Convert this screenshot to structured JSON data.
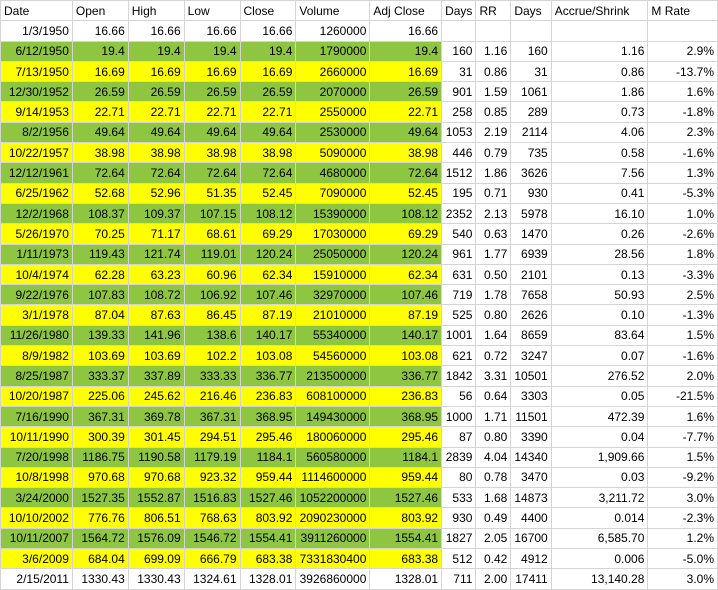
{
  "headers": [
    "Date",
    "Open",
    "High",
    "Low",
    "Close",
    "Volume",
    "Adj Close",
    "Days",
    "RR",
    "Days",
    "Accrue/Shrink",
    "M Rate"
  ],
  "rows": [
    {
      "style": "white",
      "cells": [
        "1/3/1950",
        "16.66",
        "16.66",
        "16.66",
        "16.66",
        "1260000",
        "16.66",
        "",
        "",
        "",
        "",
        ""
      ]
    },
    {
      "style": "green",
      "cells": [
        "6/12/1950",
        "19.4",
        "19.4",
        "19.4",
        "19.4",
        "1790000",
        "19.4",
        "160",
        "1.16",
        "160",
        "1.16",
        "2.9%"
      ]
    },
    {
      "style": "yellow",
      "cells": [
        "7/13/1950",
        "16.69",
        "16.69",
        "16.69",
        "16.69",
        "2660000",
        "16.69",
        "31",
        "0.86",
        "31",
        "0.86",
        "-13.7%"
      ]
    },
    {
      "style": "green",
      "cells": [
        "12/30/1952",
        "26.59",
        "26.59",
        "26.59",
        "26.59",
        "2070000",
        "26.59",
        "901",
        "1.59",
        "1061",
        "1.86",
        "1.6%"
      ]
    },
    {
      "style": "yellow",
      "cells": [
        "9/14/1953",
        "22.71",
        "22.71",
        "22.71",
        "22.71",
        "2550000",
        "22.71",
        "258",
        "0.85",
        "289",
        "0.73",
        "-1.8%"
      ]
    },
    {
      "style": "green",
      "cells": [
        "8/2/1956",
        "49.64",
        "49.64",
        "49.64",
        "49.64",
        "2530000",
        "49.64",
        "1053",
        "2.19",
        "2114",
        "4.06",
        "2.3%"
      ]
    },
    {
      "style": "yellow",
      "cells": [
        "10/22/1957",
        "38.98",
        "38.98",
        "38.98",
        "38.98",
        "5090000",
        "38.98",
        "446",
        "0.79",
        "735",
        "0.58",
        "-1.6%"
      ]
    },
    {
      "style": "green",
      "cells": [
        "12/12/1961",
        "72.64",
        "72.64",
        "72.64",
        "72.64",
        "4680000",
        "72.64",
        "1512",
        "1.86",
        "3626",
        "7.56",
        "1.3%"
      ]
    },
    {
      "style": "yellow",
      "cells": [
        "6/25/1962",
        "52.68",
        "52.96",
        "51.35",
        "52.45",
        "7090000",
        "52.45",
        "195",
        "0.71",
        "930",
        "0.41",
        "-5.3%"
      ]
    },
    {
      "style": "green",
      "cells": [
        "12/2/1968",
        "108.37",
        "109.37",
        "107.15",
        "108.12",
        "15390000",
        "108.12",
        "2352",
        "2.13",
        "5978",
        "16.10",
        "1.0%"
      ]
    },
    {
      "style": "yellow",
      "cells": [
        "5/26/1970",
        "70.25",
        "71.17",
        "68.61",
        "69.29",
        "17030000",
        "69.29",
        "540",
        "0.63",
        "1470",
        "0.26",
        "-2.6%"
      ]
    },
    {
      "style": "green",
      "cells": [
        "1/11/1973",
        "119.43",
        "121.74",
        "119.01",
        "120.24",
        "25050000",
        "120.24",
        "961",
        "1.77",
        "6939",
        "28.56",
        "1.8%"
      ]
    },
    {
      "style": "yellow",
      "cells": [
        "10/4/1974",
        "62.28",
        "63.23",
        "60.96",
        "62.34",
        "15910000",
        "62.34",
        "631",
        "0.50",
        "2101",
        "0.13",
        "-3.3%"
      ]
    },
    {
      "style": "green",
      "cells": [
        "9/22/1976",
        "107.83",
        "108.72",
        "106.92",
        "107.46",
        "32970000",
        "107.46",
        "719",
        "1.78",
        "7658",
        "50.93",
        "2.5%"
      ]
    },
    {
      "style": "yellow",
      "cells": [
        "3/1/1978",
        "87.04",
        "87.63",
        "86.45",
        "87.19",
        "21010000",
        "87.19",
        "525",
        "0.80",
        "2626",
        "0.10",
        "-1.3%"
      ]
    },
    {
      "style": "green",
      "cells": [
        "11/26/1980",
        "139.33",
        "141.96",
        "138.6",
        "140.17",
        "55340000",
        "140.17",
        "1001",
        "1.64",
        "8659",
        "83.64",
        "1.5%"
      ]
    },
    {
      "style": "yellow",
      "cells": [
        "8/9/1982",
        "103.69",
        "103.69",
        "102.2",
        "103.08",
        "54560000",
        "103.08",
        "621",
        "0.72",
        "3247",
        "0.07",
        "-1.6%"
      ]
    },
    {
      "style": "green",
      "cells": [
        "8/25/1987",
        "333.37",
        "337.89",
        "333.33",
        "336.77",
        "213500000",
        "336.77",
        "1842",
        "3.31",
        "10501",
        "276.52",
        "2.0%"
      ]
    },
    {
      "style": "yellow",
      "cells": [
        "10/20/1987",
        "225.06",
        "245.62",
        "216.46",
        "236.83",
        "608100000",
        "236.83",
        "56",
        "0.64",
        "3303",
        "0.05",
        "-21.5%"
      ]
    },
    {
      "style": "green",
      "cells": [
        "7/16/1990",
        "367.31",
        "369.78",
        "367.31",
        "368.95",
        "149430000",
        "368.95",
        "1000",
        "1.71",
        "11501",
        "472.39",
        "1.6%"
      ]
    },
    {
      "style": "yellow",
      "cells": [
        "10/11/1990",
        "300.39",
        "301.45",
        "294.51",
        "295.46",
        "180060000",
        "295.46",
        "87",
        "0.80",
        "3390",
        "0.04",
        "-7.7%"
      ]
    },
    {
      "style": "green",
      "cells": [
        "7/20/1998",
        "1186.75",
        "1190.58",
        "1179.19",
        "1184.1",
        "560580000",
        "1184.1",
        "2839",
        "4.04",
        "14340",
        "1,909.66",
        "1.5%"
      ]
    },
    {
      "style": "yellow",
      "cells": [
        "10/8/1998",
        "970.68",
        "970.68",
        "923.32",
        "959.44",
        "1114600000",
        "959.44",
        "80",
        "0.78",
        "3470",
        "0.03",
        "-9.2%"
      ]
    },
    {
      "style": "green",
      "cells": [
        "3/24/2000",
        "1527.35",
        "1552.87",
        "1516.83",
        "1527.46",
        "1052200000",
        "1527.46",
        "533",
        "1.68",
        "14873",
        "3,211.72",
        "3.0%"
      ]
    },
    {
      "style": "yellow",
      "cells": [
        "10/10/2002",
        "776.76",
        "806.51",
        "768.63",
        "803.92",
        "2090230000",
        "803.92",
        "930",
        "0.49",
        "4400",
        "0.014",
        "-2.3%"
      ]
    },
    {
      "style": "green",
      "cells": [
        "10/11/2007",
        "1564.72",
        "1576.09",
        "1546.72",
        "1554.41",
        "3911260000",
        "1554.41",
        "1827",
        "2.05",
        "16700",
        "6,585.70",
        "1.2%"
      ]
    },
    {
      "style": "yellow",
      "cells": [
        "3/6/2009",
        "684.04",
        "699.09",
        "666.79",
        "683.38",
        "7331830400",
        "683.38",
        "512",
        "0.42",
        "4912",
        "0.006",
        "-5.0%"
      ]
    },
    {
      "style": "white",
      "cells": [
        "2/15/2011",
        "1330.43",
        "1330.43",
        "1324.61",
        "1328.01",
        "3926860000",
        "1328.01",
        "711",
        "2.00",
        "17411",
        "13,140.28",
        "3.0%"
      ]
    }
  ]
}
